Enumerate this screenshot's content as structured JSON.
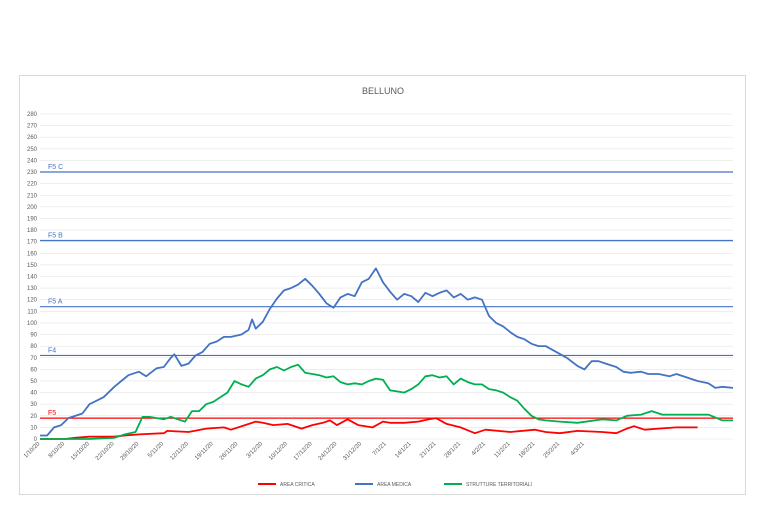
{
  "chart_data": {
    "type": "line",
    "title": "BELLUNO",
    "xlabel": "",
    "ylabel": "",
    "ylim": [
      0,
      280
    ],
    "yticks": [
      0,
      10,
      20,
      30,
      40,
      50,
      60,
      70,
      80,
      90,
      100,
      110,
      120,
      130,
      140,
      150,
      160,
      170,
      180,
      190,
      200,
      210,
      220,
      230,
      240,
      250,
      260,
      270,
      280
    ],
    "grid": true,
    "legend_position": "bottom",
    "x_tick_labels": [
      "1/10/20",
      "8/10/20",
      "15/10/20",
      "22/10/20",
      "29/10/20",
      "5/11/20",
      "12/11/20",
      "19/11/20",
      "26/11/20",
      "3/12/20",
      "10/12/20",
      "17/12/20",
      "24/12/20",
      "31/12/20",
      "7/1/21",
      "14/1/21",
      "21/1/21",
      "28/1/21",
      "4/2/21",
      "11/2/21",
      "18/2/21",
      "25/2/21",
      "4/3/21"
    ],
    "thresholds": [
      {
        "label": "F5 C",
        "value": 230,
        "color": "#4472c4"
      },
      {
        "label": "F5 B",
        "value": 171,
        "color": "#4472c4"
      },
      {
        "label": "F5 A",
        "value": 114,
        "color": "#4472c4"
      },
      {
        "label": "F4",
        "value": 72,
        "color": "#4472c4"
      },
      {
        "label": "F5",
        "value": 18,
        "color": "#ff0000"
      }
    ],
    "series": [
      {
        "name": "AREA CRITICA",
        "color": "#ff0000",
        "points": [
          [
            0,
            0
          ],
          [
            7,
            0
          ],
          [
            10,
            1
          ],
          [
            14,
            2
          ],
          [
            21,
            2
          ],
          [
            24,
            3
          ],
          [
            28,
            4
          ],
          [
            35,
            5
          ],
          [
            36,
            7
          ],
          [
            42,
            6
          ],
          [
            47,
            9
          ],
          [
            52,
            10
          ],
          [
            54,
            8
          ],
          [
            58,
            12
          ],
          [
            61,
            15
          ],
          [
            63,
            14
          ],
          [
            66,
            12
          ],
          [
            70,
            13
          ],
          [
            74,
            9
          ],
          [
            77,
            12
          ],
          [
            80,
            14
          ],
          [
            82,
            16
          ],
          [
            84,
            12
          ],
          [
            87,
            17
          ],
          [
            90,
            12
          ],
          [
            94,
            10
          ],
          [
            97,
            15
          ],
          [
            99,
            14
          ],
          [
            103,
            14
          ],
          [
            107,
            15
          ],
          [
            110,
            17
          ],
          [
            112,
            18
          ],
          [
            115,
            13
          ],
          [
            119,
            10
          ],
          [
            123,
            5
          ],
          [
            126,
            8
          ],
          [
            133,
            6
          ],
          [
            140,
            8
          ],
          [
            143,
            6
          ],
          [
            147,
            5
          ],
          [
            152,
            7
          ],
          [
            159,
            6
          ],
          [
            163,
            5
          ],
          [
            166,
            9
          ],
          [
            168,
            11
          ],
          [
            171,
            8
          ],
          [
            175,
            9
          ],
          [
            180,
            10
          ],
          [
            186,
            10
          ]
        ]
      },
      {
        "name": "AREA MEDICA",
        "color": "#4472c4",
        "points": [
          [
            0,
            3
          ],
          [
            2,
            3
          ],
          [
            4,
            10
          ],
          [
            6,
            12
          ],
          [
            8,
            18
          ],
          [
            12,
            22
          ],
          [
            14,
            30
          ],
          [
            16,
            33
          ],
          [
            18,
            36
          ],
          [
            21,
            45
          ],
          [
            23,
            50
          ],
          [
            25,
            55
          ],
          [
            28,
            58
          ],
          [
            30,
            54
          ],
          [
            33,
            61
          ],
          [
            35,
            62
          ],
          [
            37,
            70
          ],
          [
            38,
            73
          ],
          [
            40,
            63
          ],
          [
            42,
            65
          ],
          [
            44,
            72
          ],
          [
            46,
            75
          ],
          [
            48,
            82
          ],
          [
            50,
            84
          ],
          [
            52,
            88
          ],
          [
            54,
            88
          ],
          [
            57,
            90
          ],
          [
            59,
            94
          ],
          [
            60,
            103
          ],
          [
            61,
            95
          ],
          [
            63,
            101
          ],
          [
            65,
            112
          ],
          [
            67,
            121
          ],
          [
            69,
            128
          ],
          [
            71,
            130
          ],
          [
            73,
            133
          ],
          [
            75,
            138
          ],
          [
            77,
            132
          ],
          [
            79,
            125
          ],
          [
            81,
            117
          ],
          [
            83,
            113
          ],
          [
            85,
            122
          ],
          [
            87,
            125
          ],
          [
            89,
            123
          ],
          [
            91,
            135
          ],
          [
            93,
            138
          ],
          [
            95,
            147
          ],
          [
            97,
            135
          ],
          [
            99,
            127
          ],
          [
            101,
            120
          ],
          [
            103,
            125
          ],
          [
            105,
            123
          ],
          [
            107,
            118
          ],
          [
            109,
            126
          ],
          [
            111,
            123
          ],
          [
            113,
            126
          ],
          [
            115,
            128
          ],
          [
            117,
            122
          ],
          [
            119,
            125
          ],
          [
            121,
            120
          ],
          [
            123,
            122
          ],
          [
            125,
            120
          ],
          [
            127,
            106
          ],
          [
            129,
            100
          ],
          [
            131,
            97
          ],
          [
            133,
            92
          ],
          [
            135,
            88
          ],
          [
            137,
            86
          ],
          [
            139,
            82
          ],
          [
            141,
            80
          ],
          [
            143,
            80
          ],
          [
            146,
            75
          ],
          [
            149,
            70
          ],
          [
            152,
            63
          ],
          [
            154,
            60
          ],
          [
            156,
            67
          ],
          [
            158,
            67
          ],
          [
            160,
            65
          ],
          [
            163,
            62
          ],
          [
            165,
            58
          ],
          [
            167,
            57
          ],
          [
            170,
            58
          ],
          [
            172,
            56
          ],
          [
            175,
            56
          ],
          [
            178,
            54
          ],
          [
            180,
            56
          ],
          [
            183,
            53
          ],
          [
            186,
            50
          ],
          [
            189,
            48
          ],
          [
            191,
            44
          ],
          [
            193,
            45
          ],
          [
            196,
            44
          ]
        ]
      },
      {
        "name": "STRUTTURE TERRITORIALI",
        "color": "#00b050",
        "points": [
          [
            0,
            0
          ],
          [
            14,
            0
          ],
          [
            21,
            1
          ],
          [
            24,
            4
          ],
          [
            27,
            6
          ],
          [
            29,
            19
          ],
          [
            31,
            19
          ],
          [
            33,
            18
          ],
          [
            35,
            17
          ],
          [
            37,
            19
          ],
          [
            39,
            17
          ],
          [
            41,
            15
          ],
          [
            43,
            24
          ],
          [
            45,
            24
          ],
          [
            47,
            30
          ],
          [
            49,
            32
          ],
          [
            51,
            36
          ],
          [
            53,
            40
          ],
          [
            55,
            50
          ],
          [
            57,
            47
          ],
          [
            59,
            45
          ],
          [
            61,
            52
          ],
          [
            63,
            55
          ],
          [
            65,
            60
          ],
          [
            67,
            62
          ],
          [
            69,
            59
          ],
          [
            71,
            62
          ],
          [
            73,
            64
          ],
          [
            75,
            57
          ],
          [
            77,
            56
          ],
          [
            79,
            55
          ],
          [
            81,
            53
          ],
          [
            83,
            54
          ],
          [
            85,
            49
          ],
          [
            87,
            47
          ],
          [
            89,
            48
          ],
          [
            91,
            47
          ],
          [
            93,
            50
          ],
          [
            95,
            52
          ],
          [
            97,
            51
          ],
          [
            99,
            42
          ],
          [
            101,
            41
          ],
          [
            103,
            40
          ],
          [
            105,
            43
          ],
          [
            107,
            47
          ],
          [
            109,
            54
          ],
          [
            111,
            55
          ],
          [
            113,
            53
          ],
          [
            115,
            54
          ],
          [
            117,
            47
          ],
          [
            119,
            52
          ],
          [
            121,
            49
          ],
          [
            123,
            47
          ],
          [
            125,
            47
          ],
          [
            127,
            43
          ],
          [
            129,
            42
          ],
          [
            131,
            40
          ],
          [
            133,
            36
          ],
          [
            135,
            33
          ],
          [
            137,
            26
          ],
          [
            139,
            20
          ],
          [
            141,
            17
          ],
          [
            143,
            16
          ],
          [
            147,
            15
          ],
          [
            152,
            14
          ],
          [
            159,
            17
          ],
          [
            163,
            16
          ],
          [
            166,
            20
          ],
          [
            170,
            21
          ],
          [
            173,
            24
          ],
          [
            176,
            21
          ],
          [
            180,
            21
          ],
          [
            186,
            21
          ],
          [
            189,
            21
          ],
          [
            193,
            16
          ],
          [
            196,
            16
          ]
        ]
      }
    ]
  }
}
